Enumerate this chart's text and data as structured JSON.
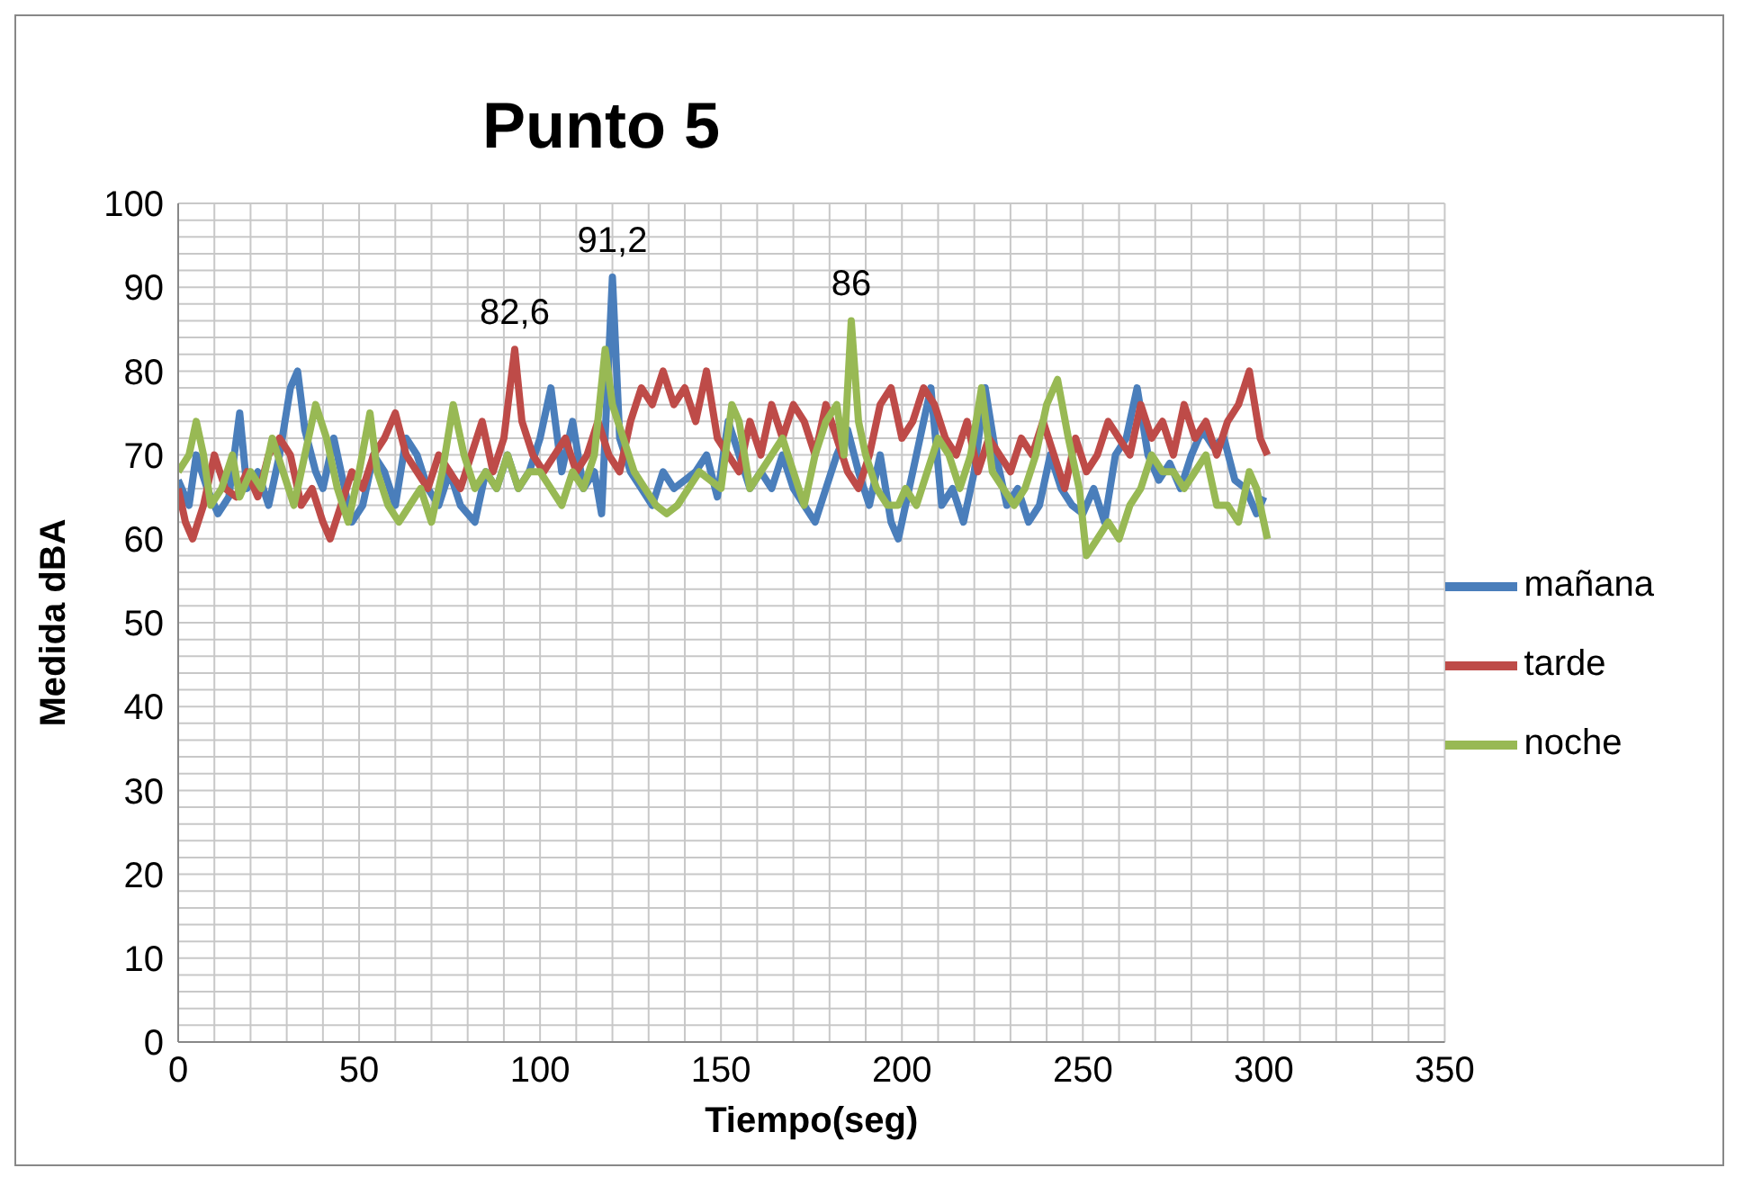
{
  "chart_data": {
    "type": "line",
    "title": "Punto 5",
    "xlabel": "Tiempo(seg)",
    "ylabel": "Medida dBA",
    "xlim": [
      0,
      350
    ],
    "ylim": [
      0,
      100
    ],
    "xticks": [
      0,
      {
        "value": 10,
        "label": null
      },
      {
        "value": 20,
        "label": null
      },
      {
        "value": 30,
        "label": null
      },
      {
        "value": 40,
        "label": null
      },
      50,
      {
        "value": 60,
        "label": null
      },
      {
        "value": 70,
        "label": null
      },
      {
        "value": 80,
        "label": null
      },
      {
        "value": 90,
        "label": null
      },
      100,
      {
        "value": 110,
        "label": null
      },
      {
        "value": 120,
        "label": null
      },
      {
        "value": 130,
        "label": null
      },
      {
        "value": 140,
        "label": null
      },
      150,
      {
        "value": 160,
        "label": null
      },
      {
        "value": 170,
        "label": null
      },
      {
        "value": 180,
        "label": null
      },
      {
        "value": 190,
        "label": null
      },
      200,
      {
        "value": 210,
        "label": null
      },
      {
        "value": 220,
        "label": null
      },
      {
        "value": 230,
        "label": null
      },
      {
        "value": 240,
        "label": null
      },
      250,
      {
        "value": 260,
        "label": null
      },
      {
        "value": 270,
        "label": null
      },
      {
        "value": 280,
        "label": null
      },
      {
        "value": 290,
        "label": null
      },
      300,
      {
        "value": 310,
        "label": null
      },
      {
        "value": 320,
        "label": null
      },
      {
        "value": 330,
        "label": null
      },
      {
        "value": 340,
        "label": null
      },
      350
    ],
    "yticks": [
      0,
      {
        "value": 2,
        "label": null
      },
      {
        "value": 4,
        "label": null
      },
      {
        "value": 6,
        "label": null
      },
      {
        "value": 8,
        "label": null
      },
      10,
      {
        "value": 12,
        "label": null
      },
      {
        "value": 14,
        "label": null
      },
      {
        "value": 16,
        "label": null
      },
      {
        "value": 18,
        "label": null
      },
      20,
      {
        "value": 22,
        "label": null
      },
      {
        "value": 24,
        "label": null
      },
      {
        "value": 26,
        "label": null
      },
      {
        "value": 28,
        "label": null
      },
      30,
      {
        "value": 32,
        "label": null
      },
      {
        "value": 34,
        "label": null
      },
      {
        "value": 36,
        "label": null
      },
      {
        "value": 38,
        "label": null
      },
      40,
      {
        "value": 42,
        "label": null
      },
      {
        "value": 44,
        "label": null
      },
      {
        "value": 46,
        "label": null
      },
      {
        "value": 48,
        "label": null
      },
      50,
      {
        "value": 52,
        "label": null
      },
      {
        "value": 54,
        "label": null
      },
      {
        "value": 56,
        "label": null
      },
      {
        "value": 58,
        "label": null
      },
      60,
      {
        "value": 62,
        "label": null
      },
      {
        "value": 64,
        "label": null
      },
      {
        "value": 66,
        "label": null
      },
      {
        "value": 68,
        "label": null
      },
      70,
      {
        "value": 72,
        "label": null
      },
      {
        "value": 74,
        "label": null
      },
      {
        "value": 76,
        "label": null
      },
      {
        "value": 78,
        "label": null
      },
      80,
      {
        "value": 82,
        "label": null
      },
      {
        "value": 84,
        "label": null
      },
      {
        "value": 86,
        "label": null
      },
      {
        "value": 88,
        "label": null
      },
      90,
      {
        "value": 92,
        "label": null
      },
      {
        "value": 94,
        "label": null
      },
      {
        "value": 96,
        "label": null
      },
      {
        "value": 98,
        "label": null
      },
      100
    ],
    "grid": true,
    "legend": "right",
    "marker": "none",
    "annotations": [
      {
        "text": "82,6",
        "x": 93,
        "y": 82.6
      },
      {
        "text": "91,2",
        "x": 120,
        "y": 91.2
      },
      {
        "text": "86",
        "x": 186,
        "y": 86
      }
    ],
    "series": [
      {
        "name": "mañana",
        "color": "#4a7ebb",
        "x": [
          0,
          3,
          5,
          8,
          11,
          14,
          17,
          19,
          22,
          25,
          28,
          31,
          33,
          35,
          38,
          40,
          43,
          46,
          48,
          51,
          54,
          57,
          60,
          63,
          66,
          69,
          72,
          75,
          78,
          82,
          85,
          88,
          91,
          94,
          97,
          100,
          103,
          106,
          109,
          112,
          115,
          117,
          120,
          122,
          125,
          128,
          131,
          134,
          137,
          140,
          143,
          146,
          149,
          152,
          155,
          158,
          161,
          164,
          167,
          170,
          173,
          176,
          179,
          182,
          185,
          188,
          191,
          194,
          197,
          199,
          202,
          205,
          208,
          211,
          214,
          217,
          220,
          223,
          226,
          229,
          232,
          235,
          238,
          241,
          244,
          247,
          250,
          253,
          256,
          259,
          262,
          265,
          268,
          271,
          274,
          277,
          280,
          283,
          286,
          289,
          292,
          295,
          298,
          300
        ],
        "values": [
          67,
          64,
          70,
          66,
          63,
          65,
          75,
          66,
          68,
          64,
          70,
          78,
          80,
          73,
          68,
          66,
          72,
          66,
          62,
          64,
          70,
          68,
          64,
          72,
          70,
          66,
          64,
          68,
          64,
          62,
          68,
          66,
          70,
          66,
          68,
          72,
          78,
          68,
          74,
          66,
          68,
          63,
          91.2,
          72,
          68,
          66,
          64,
          68,
          66,
          67,
          68,
          70,
          65,
          74,
          70,
          66,
          68,
          66,
          70,
          66,
          64,
          62,
          66,
          70,
          73,
          68,
          64,
          70,
          62,
          60,
          66,
          72,
          78,
          64,
          66,
          62,
          68,
          78,
          70,
          64,
          66,
          62,
          64,
          70,
          66,
          64,
          63,
          66,
          62,
          70,
          72,
          78,
          70,
          67,
          69,
          66,
          70,
          73,
          71,
          72,
          67,
          66,
          63,
          65
        ]
      },
      {
        "name": "tarde",
        "color": "#be4b48",
        "x": [
          0,
          2,
          4,
          7,
          10,
          13,
          16,
          19,
          22,
          25,
          28,
          31,
          34,
          37,
          40,
          42,
          45,
          48,
          51,
          54,
          57,
          60,
          63,
          66,
          69,
          72,
          75,
          78,
          81,
          84,
          87,
          90,
          93,
          95,
          98,
          101,
          104,
          107,
          110,
          113,
          116,
          119,
          122,
          125,
          128,
          131,
          134,
          137,
          140,
          143,
          146,
          149,
          152,
          155,
          158,
          161,
          164,
          167,
          170,
          173,
          176,
          179,
          182,
          185,
          188,
          191,
          194,
          197,
          200,
          203,
          206,
          209,
          212,
          215,
          218,
          221,
          224,
          227,
          230,
          233,
          236,
          239,
          242,
          245,
          248,
          251,
          254,
          257,
          260,
          263,
          266,
          269,
          272,
          275,
          278,
          281,
          284,
          287,
          290,
          293,
          296,
          299,
          301
        ],
        "values": [
          66,
          62,
          60,
          64,
          70,
          66,
          65,
          68,
          65,
          70,
          72,
          70,
          64,
          66,
          62,
          60,
          64,
          68,
          66,
          70,
          72,
          75,
          70,
          68,
          66,
          70,
          68,
          66,
          70,
          74,
          68,
          72,
          82.6,
          74,
          70,
          68,
          70,
          72,
          68,
          70,
          74,
          70,
          68,
          74,
          78,
          76,
          80,
          76,
          78,
          74,
          80,
          72,
          70,
          68,
          74,
          70,
          76,
          72,
          76,
          74,
          70,
          76,
          72,
          68,
          66,
          70,
          76,
          78,
          72,
          74,
          78,
          76,
          72,
          70,
          74,
          68,
          72,
          70,
          68,
          72,
          70,
          74,
          70,
          66,
          72,
          68,
          70,
          74,
          72,
          70,
          76,
          72,
          74,
          70,
          76,
          72,
          74,
          70,
          74,
          76,
          80,
          72,
          70
        ]
      },
      {
        "name": "noche",
        "color": "#98b954",
        "x": [
          0,
          3,
          5,
          7,
          9,
          12,
          15,
          17,
          20,
          23,
          26,
          29,
          32,
          35,
          38,
          41,
          44,
          47,
          50,
          53,
          55,
          58,
          61,
          64,
          67,
          70,
          73,
          76,
          79,
          82,
          85,
          88,
          91,
          94,
          97,
          100,
          103,
          106,
          109,
          112,
          115,
          118,
          120,
          123,
          126,
          129,
          132,
          135,
          138,
          141,
          144,
          147,
          150,
          153,
          155,
          158,
          161,
          164,
          167,
          170,
          173,
          176,
          179,
          182,
          184,
          186,
          188,
          190,
          193,
          196,
          199,
          201,
          204,
          207,
          210,
          213,
          216,
          219,
          222,
          225,
          228,
          231,
          234,
          237,
          240,
          243,
          246,
          249,
          251,
          254,
          257,
          260,
          263,
          266,
          269,
          272,
          275,
          278,
          281,
          284,
          287,
          290,
          293,
          296,
          298,
          301
        ],
        "values": [
          68,
          70,
          74,
          70,
          64,
          66,
          70,
          65,
          68,
          66,
          72,
          68,
          64,
          70,
          76,
          72,
          66,
          62,
          68,
          75,
          68,
          64,
          62,
          64,
          66,
          62,
          68,
          76,
          70,
          66,
          68,
          66,
          70,
          66,
          68,
          68,
          66,
          64,
          68,
          66,
          70,
          82.6,
          76,
          72,
          68,
          66,
          64,
          63,
          64,
          66,
          68,
          67,
          66,
          76,
          74,
          66,
          68,
          70,
          72,
          68,
          64,
          70,
          74,
          76,
          70,
          86,
          74,
          70,
          66,
          64,
          64,
          66,
          64,
          68,
          72,
          70,
          66,
          70,
          78,
          68,
          66,
          64,
          66,
          70,
          76,
          79,
          72,
          66,
          58,
          60,
          62,
          60,
          64,
          66,
          70,
          68,
          68,
          66,
          68,
          70,
          64,
          64,
          62,
          68,
          66,
          60
        ]
      }
    ]
  }
}
